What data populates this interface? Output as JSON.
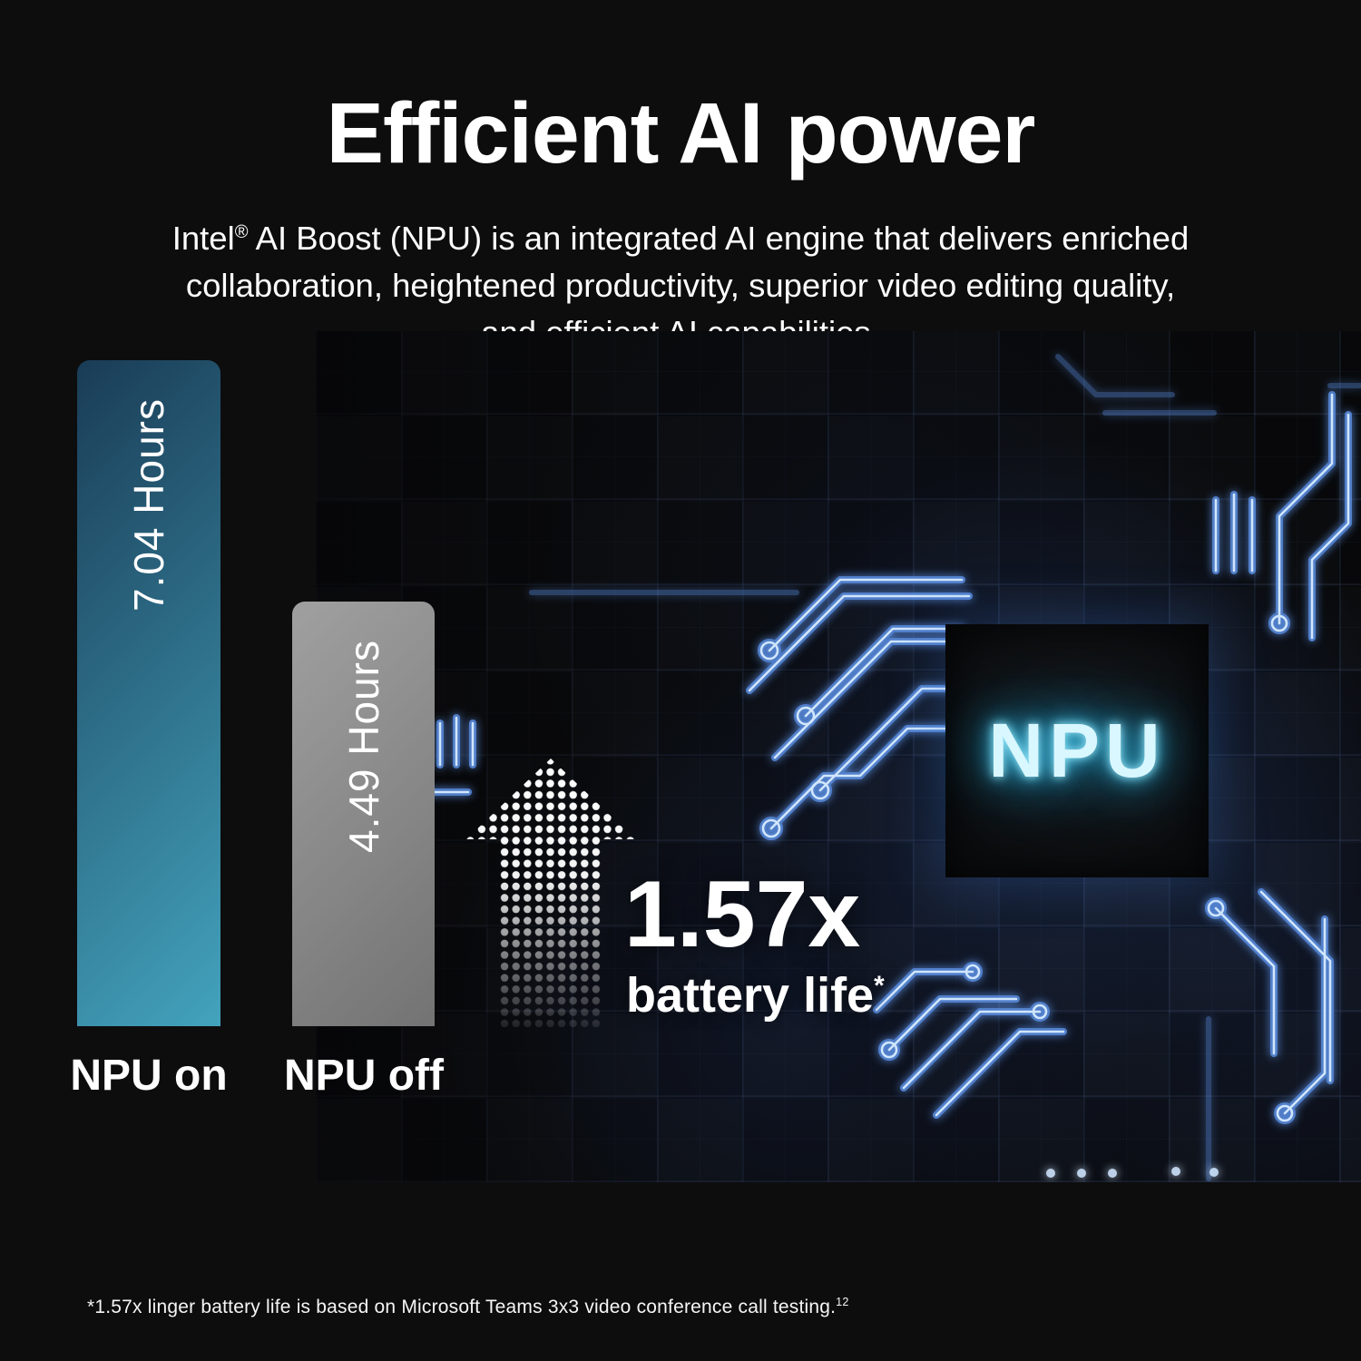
{
  "header": {
    "title": "Efficient AI power"
  },
  "subtitle": {
    "line1_prefix": "Intel",
    "line1_reg_mark": "®",
    "line1_suffix": " AI Boost (NPU) is an integrated AI engine that delivers enriched",
    "line2": "collaboration, heightened productivity, superior video editing quality,",
    "line3": "and efficient AI capabilities."
  },
  "chart_data": {
    "type": "bar",
    "orientation": "vertical",
    "categories": [
      "NPU on",
      "NPU off"
    ],
    "values": [
      7.04,
      4.49
    ],
    "value_labels": [
      "7.04 Hours",
      "4.49 Hours"
    ],
    "unit": "Hours",
    "ylim": [
      0,
      7.04
    ],
    "grid": false,
    "legend": false,
    "annotation": "1.57x battery life*"
  },
  "highlight": {
    "multiplier": "1.57x",
    "label": "battery life",
    "asterisk": "*"
  },
  "chip": {
    "label": "NPU"
  },
  "footnote": {
    "text": "*1.57x linger battery life is based on Microsoft Teams 3x3 video conference call testing.",
    "superscript": "12"
  },
  "colors": {
    "background": "#0d0d0e",
    "bars": [
      {
        "from": "#1a3c56",
        "to": "#43a3bd"
      },
      {
        "from": "#a0a0a0",
        "to": "#737373"
      }
    ],
    "npu_glow": "#46cdf2",
    "trace_glow": "#5d92e8",
    "text": "#ffffff"
  }
}
